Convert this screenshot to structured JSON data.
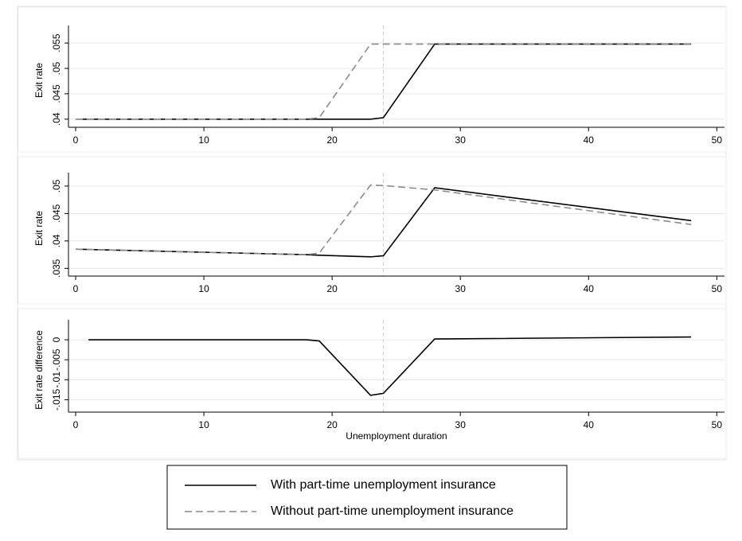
{
  "chart_data": [
    {
      "type": "line",
      "y_label": "Exit rate",
      "x": [
        0,
        18,
        19,
        23,
        24,
        28,
        48
      ],
      "series": [
        {
          "name": "With part-time unemployment insurance",
          "color": "#000000",
          "style": "solid",
          "values": [
            0.04,
            0.04,
            0.04,
            0.04,
            0.0403,
            0.0548,
            0.0548
          ]
        },
        {
          "name": "Without part-time unemployment insurance",
          "color": "#8c8c8c",
          "style": "dashed",
          "values": [
            0.04,
            0.04,
            0.0403,
            0.0548,
            0.0548,
            0.0548,
            0.0548
          ]
        }
      ],
      "xlim": [
        -0.56,
        50.6
      ],
      "xticks": [
        0,
        10,
        20,
        30,
        40,
        50
      ],
      "ylim": [
        0.0384,
        0.0569
      ],
      "yticks": [
        {
          "value": 0.04,
          "label": ".04"
        },
        {
          "value": 0.045,
          "label": ".045"
        },
        {
          "value": 0.05,
          "label": ".05"
        },
        {
          "value": 0.055,
          "label": ".055"
        }
      ],
      "xline": 24,
      "grid": true
    },
    {
      "type": "line",
      "y_label": "Exit rate",
      "x": [
        0,
        18,
        19,
        23,
        24,
        28,
        48
      ],
      "series": [
        {
          "color": "#000000",
          "style": "solid",
          "values": [
            0.0385,
            0.0375,
            0.0374,
            0.0371,
            0.0373,
            0.0497,
            0.0437
          ]
        },
        {
          "color": "#8c8c8c",
          "style": "dashed",
          "values": [
            0.0385,
            0.0375,
            0.0378,
            0.0502,
            0.0501,
            0.0493,
            0.043
          ]
        }
      ],
      "xlim": [
        -0.56,
        50.6
      ],
      "xticks": [
        0,
        10,
        20,
        30,
        40,
        50
      ],
      "ylim": [
        0.0336,
        0.051
      ],
      "yticks": [
        {
          "value": 0.035,
          "label": ".035"
        },
        {
          "value": 0.04,
          "label": ".04"
        },
        {
          "value": 0.045,
          "label": ".045"
        },
        {
          "value": 0.05,
          "label": ".05"
        }
      ],
      "xline": 24,
      "grid": true
    },
    {
      "type": "line",
      "y_label": "Exit rate difference",
      "x_label": "Unemployment duration",
      "x": [
        1,
        18,
        19,
        23,
        24,
        28,
        48
      ],
      "values": [
        0,
        0,
        -0.0003,
        -0.0139,
        -0.0134,
        0.0002,
        0.0007
      ],
      "color": "#000000",
      "xlim": [
        -0.56,
        50.6
      ],
      "xticks": [
        0,
        10,
        20,
        30,
        40,
        50
      ],
      "ylim": [
        -0.0181,
        0.003
      ],
      "yticks": [
        {
          "value": -0.015,
          "label": "-.015"
        },
        {
          "value": -0.01,
          "label": "-.01"
        },
        {
          "value": -0.005,
          "label": "-.005"
        },
        0
      ],
      "xline": 24,
      "grid": true
    }
  ]
}
